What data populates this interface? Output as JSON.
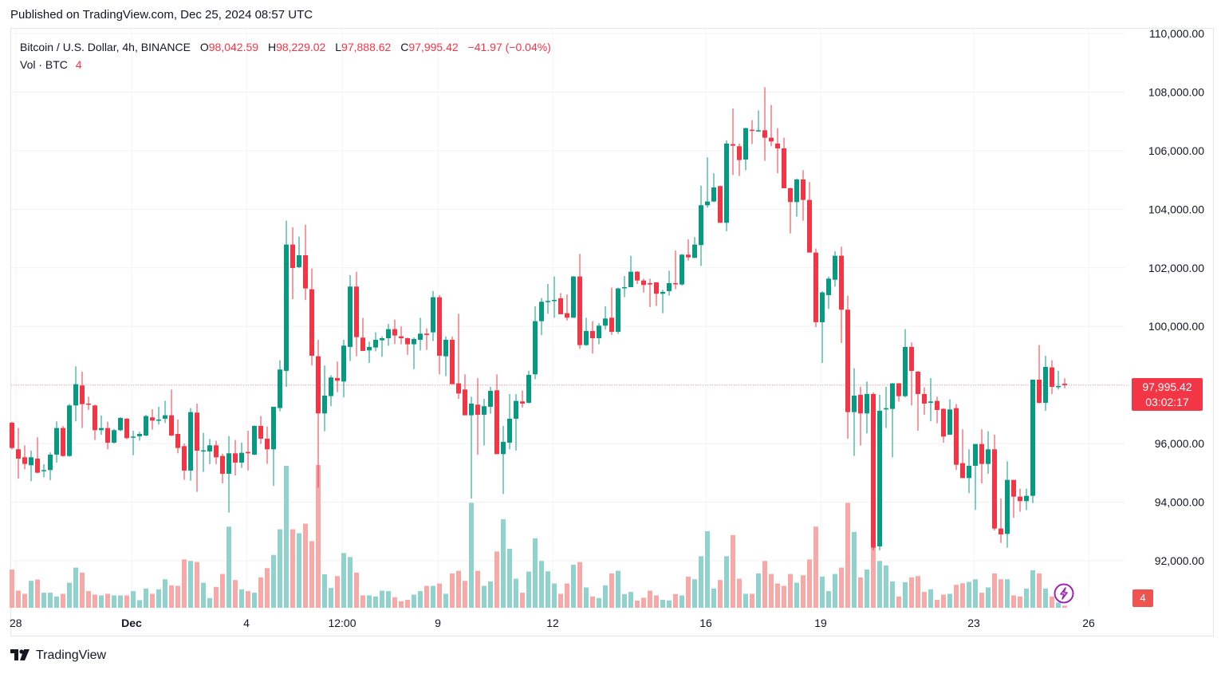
{
  "header": {
    "published": "Published on TradingView.com, Dec 25, 2024 08:57 UTC"
  },
  "legend": {
    "symbol": "Bitcoin / U.S. Dollar, 4h, BINANCE",
    "o_label": "O",
    "o_value": "98,042.59",
    "h_label": "H",
    "h_value": "98,229.02",
    "l_label": "L",
    "l_value": "97,888.62",
    "c_label": "C",
    "c_value": "97,995.42",
    "change": "−41.97 (−0.04%)",
    "vol_label": "Vol · BTC",
    "vol_value": "4"
  },
  "price_tag": {
    "price": "97,995.42",
    "countdown": "03:02:17"
  },
  "volume_tag": "4",
  "footer": {
    "logo_text": "TradingView"
  },
  "icons": {
    "bolt": "lightning-icon",
    "logo": "tradingview-logo-icon"
  },
  "colors": {
    "up": "#089981",
    "down": "#f23645",
    "up_volume": "#92d2cc",
    "down_volume": "#f7a9a7",
    "last_price_line": "#f23645",
    "bolt": "#9c27b0"
  },
  "chart_data": {
    "type": "candlestick",
    "title": "Bitcoin / U.S. Dollar, 4h, BINANCE",
    "interval": "4h",
    "ylim": [
      91000,
      110500
    ],
    "y_ticks": [
      110000,
      108000,
      106000,
      104000,
      102000,
      100000,
      98000,
      96000,
      94000,
      92000
    ],
    "y_tick_labels": [
      "110,000.00",
      "108,000.00",
      "106,000.00",
      "104,000.00",
      "102,000.00",
      "100,000.00",
      "",
      "96,000.00",
      "94,000.00",
      "92,000.00"
    ],
    "x_tick_labels": [
      "28",
      "Dec",
      "4",
      "12:00",
      "9",
      "12",
      "16",
      "19",
      "23",
      "26"
    ],
    "grid": true,
    "last_price": 97995.42,
    "volume_note": "volume values are relative bar heights",
    "ohlc": [
      [
        96712,
        96750,
        95800,
        95850
      ],
      [
        95805,
        96530,
        94806,
        95486
      ],
      [
        95532,
        95940,
        95123,
        95305
      ],
      [
        95260,
        95760,
        94715,
        95532
      ],
      [
        95486,
        96213,
        94987,
        95005
      ],
      [
        95060,
        95300,
        94850,
        95096
      ],
      [
        95096,
        95700,
        94750,
        95623
      ],
      [
        95623,
        96757,
        95350,
        96530
      ],
      [
        96530,
        96600,
        95550,
        95577
      ],
      [
        95577,
        97350,
        95550,
        97302
      ],
      [
        97302,
        98636,
        96757,
        98028
      ],
      [
        97983,
        98455,
        96530,
        97347
      ],
      [
        97365,
        97600,
        97150,
        97329
      ],
      [
        97302,
        97330,
        96122,
        96458
      ],
      [
        96458,
        96960,
        96300,
        96530
      ],
      [
        96530,
        96750,
        95804,
        96031
      ],
      [
        96031,
        96500,
        96000,
        96458
      ],
      [
        96458,
        96900,
        96420,
        96875
      ],
      [
        96848,
        96870,
        96150,
        96186
      ],
      [
        96213,
        96440,
        95600,
        96240
      ],
      [
        96250,
        96400,
        96100,
        96330
      ],
      [
        96276,
        96980,
        96250,
        96939
      ],
      [
        96894,
        97170,
        96480,
        96785
      ],
      [
        96785,
        97260,
        96650,
        96820
      ],
      [
        96848,
        97460,
        96700,
        96966
      ],
      [
        96966,
        97846,
        96250,
        96276
      ],
      [
        96330,
        96820,
        95670,
        95850
      ],
      [
        95913,
        96000,
        94760,
        95078
      ],
      [
        95078,
        97212,
        94733,
        97075
      ],
      [
        97057,
        97366,
        94352,
        95759
      ],
      [
        95759,
        96367,
        95033,
        95770
      ],
      [
        95732,
        96160,
        95300,
        95940
      ],
      [
        95940,
        96100,
        95300,
        95532
      ],
      [
        95577,
        95650,
        94642,
        94970
      ],
      [
        94970,
        96258,
        93645,
        95668
      ],
      [
        95668,
        96122,
        94915,
        95350
      ],
      [
        95350,
        96030,
        95170,
        95686
      ],
      [
        95713,
        96440,
        95080,
        95668
      ],
      [
        95623,
        96620,
        95600,
        96603
      ],
      [
        96603,
        96940,
        95990,
        96168
      ],
      [
        96168,
        96580,
        95305,
        95804
      ],
      [
        95804,
        97260,
        94552,
        97257
      ],
      [
        97212,
        98845,
        97100,
        98528
      ],
      [
        98483,
        103610,
        97938,
        102794
      ],
      [
        102794,
        103384,
        100933,
        101995
      ],
      [
        102022,
        103066,
        101990,
        102430
      ],
      [
        102430,
        103474,
        100906,
        101296
      ],
      [
        101269,
        101976,
        98664,
        98999
      ],
      [
        98981,
        99544,
        94500,
        97030
      ],
      [
        97030,
        98664,
        96422,
        97638
      ],
      [
        97620,
        98330,
        97275,
        98256
      ],
      [
        98238,
        98800,
        97756,
        98146
      ],
      [
        98119,
        99544,
        97574,
        99345
      ],
      [
        99300,
        101750,
        98818,
        101360
      ],
      [
        101360,
        101868,
        98981,
        99635
      ],
      [
        99617,
        100297,
        99163,
        99163
      ],
      [
        99181,
        99480,
        98750,
        99300
      ],
      [
        99280,
        99800,
        99150,
        99544
      ],
      [
        99526,
        99660,
        98960,
        99598
      ],
      [
        99598,
        100089,
        99340,
        99907
      ],
      [
        99907,
        100234,
        99400,
        99689
      ],
      [
        99662,
        100000,
        99390,
        99598
      ],
      [
        99598,
        99620,
        99030,
        99390
      ],
      [
        99390,
        99620,
        98546,
        99571
      ],
      [
        99544,
        100297,
        99180,
        99753
      ],
      [
        99753,
        99930,
        99200,
        99707
      ],
      [
        99798,
        101206,
        99500,
        100996
      ],
      [
        100996,
        101070,
        98364,
        98999
      ],
      [
        98981,
        99660,
        98301,
        99544
      ],
      [
        99544,
        99660,
        98028,
        98028
      ],
      [
        98055,
        100433,
        97529,
        97710
      ],
      [
        97846,
        98364,
        96966,
        96966
      ],
      [
        96966,
        97601,
        94125,
        97366
      ],
      [
        97330,
        98237,
        95622,
        96984
      ],
      [
        96984,
        97530,
        95940,
        97275
      ],
      [
        97257,
        97938,
        97020,
        97801
      ],
      [
        97819,
        98364,
        95641,
        95641
      ],
      [
        95641,
        96603,
        94280,
        96058
      ],
      [
        96031,
        97692,
        95804,
        96848
      ],
      [
        96848,
        97692,
        95760,
        97456
      ],
      [
        97438,
        97810,
        97230,
        97366
      ],
      [
        97393,
        98483,
        97370,
        98346
      ],
      [
        98364,
        100688,
        98200,
        100179
      ],
      [
        100179,
        100970,
        99700,
        100842
      ],
      [
        100869,
        101450,
        100433,
        100869
      ],
      [
        100887,
        101704,
        100297,
        100905
      ],
      [
        100960,
        101140,
        100415,
        100415
      ],
      [
        100452,
        101090,
        100200,
        100297
      ],
      [
        100297,
        101720,
        100297,
        101704
      ],
      [
        101704,
        102476,
        99235,
        99362
      ],
      [
        99362,
        100297,
        99340,
        99843
      ],
      [
        99843,
        100180,
        99072,
        99598
      ],
      [
        99598,
        100110,
        99390,
        100025
      ],
      [
        100025,
        100690,
        99890,
        100270
      ],
      [
        100297,
        101323,
        99710,
        99816
      ],
      [
        99816,
        101323,
        99750,
        101296
      ],
      [
        101323,
        101720,
        101000,
        101341
      ],
      [
        101341,
        102412,
        101341,
        101867
      ],
      [
        101867,
        101890,
        101450,
        101568
      ],
      [
        101568,
        101630,
        101160,
        101414
      ],
      [
        101477,
        101630,
        100660,
        101432
      ],
      [
        101505,
        101505,
        100700,
        101114
      ],
      [
        101114,
        101250,
        100450,
        101178
      ],
      [
        101205,
        101900,
        101050,
        101477
      ],
      [
        101477,
        102594,
        101270,
        101450
      ],
      [
        101432,
        102475,
        101390,
        102449
      ],
      [
        102449,
        102970,
        102250,
        102358
      ],
      [
        102340,
        103048,
        102340,
        102794
      ],
      [
        102776,
        104808,
        102067,
        104137
      ],
      [
        104137,
        105771,
        104050,
        104264
      ],
      [
        104264,
        105226,
        104240,
        104745
      ],
      [
        104790,
        104808,
        103538,
        103538
      ],
      [
        103538,
        106351,
        103247,
        106243
      ],
      [
        106225,
        107441,
        105171,
        106170
      ],
      [
        106152,
        106240,
        105135,
        105680
      ],
      [
        105698,
        106787,
        105330,
        106769
      ],
      [
        106715,
        107041,
        106225,
        106678
      ],
      [
        106678,
        107377,
        106650,
        106697
      ],
      [
        106697,
        108167,
        105652,
        106442
      ],
      [
        106442,
        107559,
        106150,
        106315
      ],
      [
        106243,
        106770,
        105226,
        106079
      ],
      [
        106079,
        106442,
        104718,
        104718
      ],
      [
        104718,
        104740,
        103175,
        104246
      ],
      [
        104246,
        105050,
        103747,
        105017
      ],
      [
        105017,
        105335,
        103610,
        104318
      ],
      [
        104318,
        104928,
        102521,
        102521
      ],
      [
        102521,
        102657,
        99979,
        100143
      ],
      [
        100143,
        101200,
        98754,
        101160
      ],
      [
        101069,
        101700,
        100600,
        101631
      ],
      [
        101595,
        102566,
        101359,
        102412
      ],
      [
        102412,
        102721,
        99435,
        100570
      ],
      [
        100570,
        101050,
        96167,
        97075
      ],
      [
        97075,
        98572,
        95577,
        97637
      ],
      [
        97664,
        97940,
        95940,
        97029
      ],
      [
        97029,
        98119,
        96348,
        97692
      ],
      [
        97692,
        97750,
        92355,
        92445
      ],
      [
        92490,
        97664,
        92355,
        97120
      ],
      [
        97165,
        97937,
        96530,
        97211
      ],
      [
        97184,
        98070,
        95532,
        98055
      ],
      [
        98055,
        98070,
        97430,
        97619
      ],
      [
        97619,
        99906,
        97580,
        99298
      ],
      [
        99298,
        99453,
        97300,
        98482
      ],
      [
        98454,
        98480,
        96440,
        97692
      ],
      [
        97692,
        97920,
        96984,
        97365
      ],
      [
        97392,
        98237,
        96757,
        97438
      ],
      [
        97456,
        97600,
        96694,
        97147
      ],
      [
        97184,
        97210,
        96030,
        96239
      ],
      [
        96303,
        97510,
        96303,
        97165
      ],
      [
        97211,
        97347,
        95096,
        95277
      ],
      [
        95332,
        96485,
        94823,
        94823
      ],
      [
        94823,
        95804,
        94306,
        95241
      ],
      [
        95241,
        95985,
        93734,
        95985
      ],
      [
        95985,
        96485,
        94642,
        95304
      ],
      [
        95304,
        96421,
        94969,
        95804
      ],
      [
        95804,
        96304,
        93035,
        93099
      ],
      [
        93099,
        94125,
        92608,
        92899
      ],
      [
        92917,
        95396,
        92445,
        94760
      ],
      [
        94760,
        94760,
        93462,
        94188
      ],
      [
        94188,
        94460,
        93670,
        94034
      ],
      [
        94034,
        94460,
        93730,
        94215
      ],
      [
        94215,
        98182,
        93970,
        98182
      ],
      [
        98182,
        99362,
        97365,
        97392
      ],
      [
        97392,
        98999,
        97120,
        98618
      ],
      [
        98600,
        98845,
        97692,
        97937
      ],
      [
        97964,
        98482,
        97846,
        97964
      ],
      [
        98042.59,
        98229.02,
        97888.62,
        97995.42
      ]
    ],
    "volume": [
      145,
      65,
      53,
      102,
      107,
      57,
      57,
      43,
      53,
      95,
      152,
      133,
      63,
      50,
      47,
      53,
      47,
      47,
      47,
      63,
      29,
      73,
      53,
      70,
      108,
      85,
      83,
      183,
      177,
      173,
      95,
      37,
      79,
      128,
      307,
      105,
      70,
      63,
      57,
      115,
      150,
      200,
      297,
      537,
      297,
      282,
      318,
      252,
      540,
      127,
      75,
      120,
      207,
      192,
      133,
      47,
      47,
      43,
      65,
      63,
      40,
      25,
      30,
      50,
      63,
      83,
      83,
      92,
      53,
      130,
      140,
      102,
      397,
      140,
      83,
      100,
      213,
      335,
      223,
      110,
      57,
      137,
      263,
      177,
      138,
      92,
      53,
      92,
      163,
      173,
      77,
      43,
      37,
      85,
      130,
      140,
      52,
      60,
      27,
      38,
      65,
      47,
      30,
      28,
      52,
      47,
      118,
      108,
      195,
      290,
      73,
      105,
      195,
      275,
      110,
      53,
      53,
      130,
      177,
      128,
      92,
      83,
      128,
      95,
      123,
      183,
      307,
      118,
      63,
      128,
      152,
      397,
      287,
      115,
      145,
      227,
      177,
      160,
      100,
      43,
      97,
      115,
      120,
      60,
      70,
      30,
      50,
      53,
      87,
      93,
      98,
      108,
      57,
      77,
      130,
      108,
      108,
      47,
      43,
      73,
      142,
      130,
      73,
      43,
      20,
      8
    ]
  }
}
